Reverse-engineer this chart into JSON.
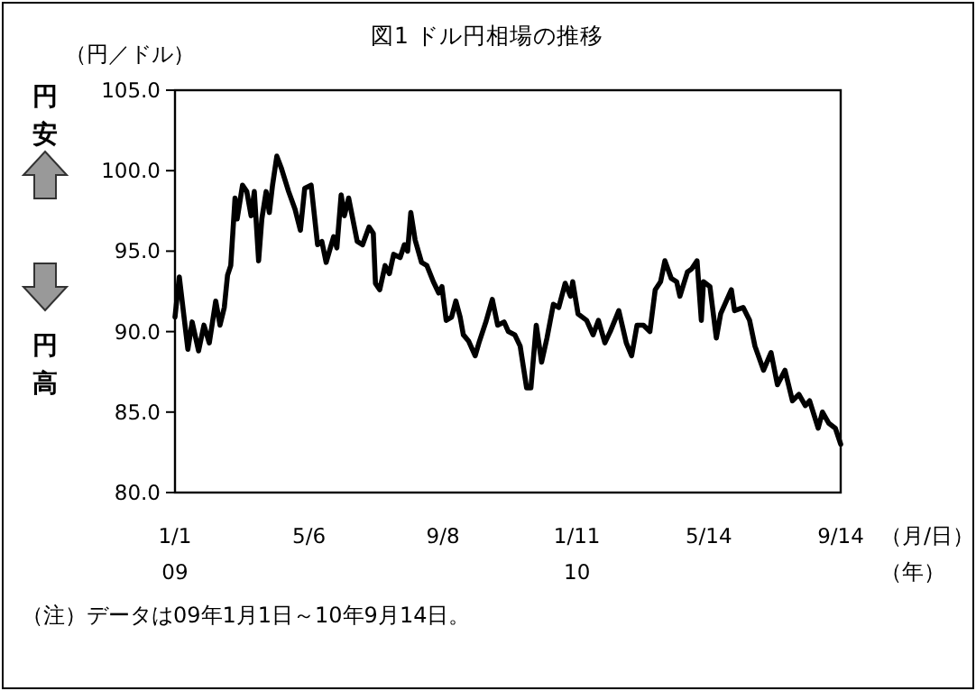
{
  "chart_data": {
    "type": "line",
    "title": "図1 ドル円相場の推移",
    "ylabel": "（円／ドル）",
    "xlabel": "（月/日）",
    "annotations": [
      "円安",
      "円高",
      "（年）",
      "（注）データは09年1月1日～10年9月14日。"
    ],
    "xlim": [
      "2009-01-01",
      "2010-09-14"
    ],
    "xticks": [
      {
        "value": "2009-01-01",
        "label": "1/1\n09"
      },
      {
        "value": "2009-05-06",
        "label": "5/6"
      },
      {
        "value": "2009-09-08",
        "label": "9/8"
      },
      {
        "value": "2010-01-11",
        "label": "1/11\n10"
      },
      {
        "value": "2010-05-14",
        "label": "5/14"
      },
      {
        "value": "2010-09-14",
        "label": "9/14"
      }
    ],
    "ylim": [
      80,
      105
    ],
    "yticks": [
      {
        "value": 80,
        "label": "80.0"
      },
      {
        "value": 85,
        "label": "85.0"
      },
      {
        "value": 90,
        "label": "90.0"
      },
      {
        "value": 95,
        "label": "95.0"
      },
      {
        "value": 100,
        "label": "100.0"
      },
      {
        "value": 105,
        "label": "105.0"
      }
    ],
    "grid": false,
    "marker": "none",
    "line_style": "solid",
    "series": [
      {
        "color": "#000000",
        "x": [
          "2009-01-01",
          "2009-01-05",
          "2009-01-13",
          "2009-01-17",
          "2009-01-23",
          "2009-01-28",
          "2009-02-02",
          "2009-02-08",
          "2009-02-12",
          "2009-02-16",
          "2009-02-19",
          "2009-02-22",
          "2009-02-26",
          "2009-02-28",
          "2009-03-05",
          "2009-03-09",
          "2009-03-13",
          "2009-03-16",
          "2009-03-20",
          "2009-03-23",
          "2009-03-27",
          "2009-03-30",
          "2009-04-02",
          "2009-04-06",
          "2009-04-10",
          "2009-04-17",
          "2009-04-23",
          "2009-04-28",
          "2009-05-02",
          "2009-05-08",
          "2009-05-14",
          "2009-05-18",
          "2009-05-22",
          "2009-05-29",
          "2009-06-01",
          "2009-06-05",
          "2009-06-08",
          "2009-06-12",
          "2009-06-20",
          "2009-06-25",
          "2009-07-01",
          "2009-07-05",
          "2009-07-07",
          "2009-07-11",
          "2009-07-16",
          "2009-07-20",
          "2009-07-24",
          "2009-07-30",
          "2009-08-03",
          "2009-08-06",
          "2009-08-09",
          "2009-08-13",
          "2009-08-19",
          "2009-08-24",
          "2009-08-30",
          "2009-09-04",
          "2009-09-07",
          "2009-09-11",
          "2009-09-16",
          "2009-09-20",
          "2009-09-24",
          "2009-09-27",
          "2009-10-02",
          "2009-10-08",
          "2009-10-12",
          "2009-10-18",
          "2009-10-24",
          "2009-10-29",
          "2009-11-04",
          "2009-11-08",
          "2009-11-14",
          "2009-11-19",
          "2009-11-25",
          "2009-11-29",
          "2009-12-04",
          "2009-12-09",
          "2009-12-14",
          "2009-12-20",
          "2009-12-25",
          "2009-12-31",
          "2010-01-05",
          "2010-01-07",
          "2010-01-12",
          "2010-01-20",
          "2010-01-26",
          "2010-01-31",
          "2010-02-06",
          "2010-02-11",
          "2010-02-19",
          "2010-02-26",
          "2010-03-03",
          "2010-03-08",
          "2010-03-14",
          "2010-03-20",
          "2010-03-25",
          "2010-03-30",
          "2010-04-03",
          "2010-04-09",
          "2010-04-14",
          "2010-04-17",
          "2010-04-24",
          "2010-04-28",
          "2010-05-03",
          "2010-05-07",
          "2010-05-09",
          "2010-05-15",
          "2010-05-21",
          "2010-05-25",
          "2010-06-04",
          "2010-06-07",
          "2010-06-15",
          "2010-06-21",
          "2010-06-26",
          "2010-07-04",
          "2010-07-11",
          "2010-07-17",
          "2010-07-24",
          "2010-07-31",
          "2010-08-06",
          "2010-08-12",
          "2010-08-16",
          "2010-08-24",
          "2010-08-28",
          "2010-09-03",
          "2010-09-09",
          "2010-09-14"
        ],
        "values": [
          90.9,
          93.4,
          88.9,
          90.6,
          88.8,
          90.4,
          89.3,
          91.9,
          90.4,
          91.5,
          93.5,
          94.1,
          98.3,
          97.0,
          99.1,
          98.7,
          97.2,
          98.7,
          94.4,
          97.0,
          98.7,
          97.4,
          99.1,
          100.9,
          100.2,
          98.7,
          97.6,
          96.3,
          98.9,
          99.1,
          95.4,
          95.6,
          94.3,
          95.9,
          95.2,
          98.5,
          97.2,
          98.3,
          95.6,
          95.4,
          96.5,
          96.1,
          93.0,
          92.6,
          94.1,
          93.6,
          94.8,
          94.6,
          95.4,
          95.0,
          97.4,
          95.7,
          94.3,
          94.1,
          93.1,
          92.4,
          92.8,
          90.7,
          90.9,
          91.9,
          90.9,
          89.8,
          89.4,
          88.5,
          89.4,
          90.6,
          92.0,
          90.4,
          90.6,
          90.0,
          89.8,
          89.1,
          86.5,
          86.5,
          90.4,
          88.1,
          89.6,
          91.7,
          91.5,
          93.0,
          92.2,
          93.1,
          91.1,
          90.7,
          89.8,
          90.7,
          89.3,
          90.0,
          91.3,
          89.3,
          88.5,
          90.4,
          90.4,
          90.0,
          92.6,
          93.1,
          94.4,
          93.3,
          93.1,
          92.2,
          93.7,
          93.9,
          94.4,
          90.7,
          93.1,
          92.8,
          89.6,
          91.1,
          92.6,
          91.3,
          91.5,
          90.7,
          89.1,
          87.6,
          88.7,
          86.7,
          87.6,
          85.7,
          86.1,
          85.4,
          85.7,
          84.0,
          85.0,
          84.3,
          84.0,
          83.0
        ]
      }
    ]
  }
}
